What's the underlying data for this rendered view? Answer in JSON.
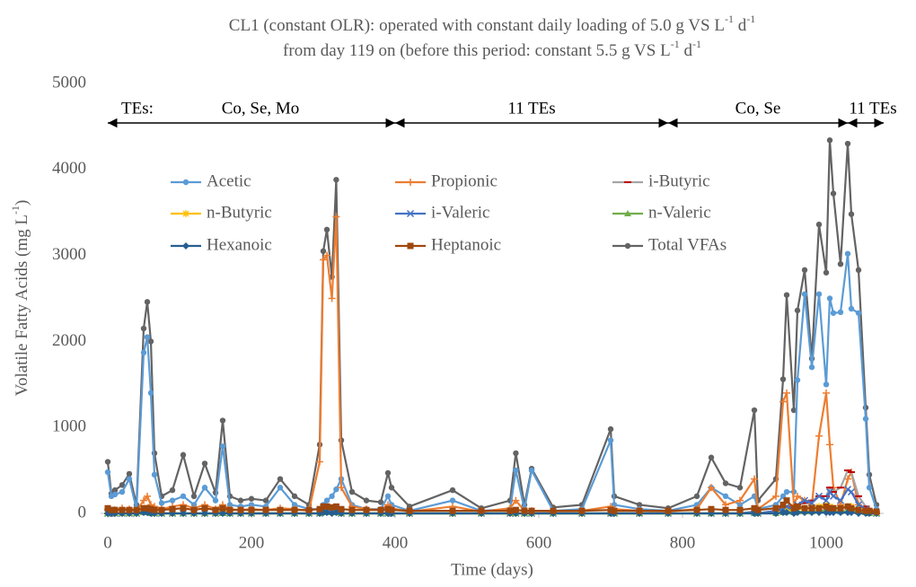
{
  "chart_data": {
    "type": "line",
    "title": [
      [
        "CL1 (constant OLR): operated with constant daily loading of 5.0 g VS L",
        "-1",
        " d",
        "-1"
      ],
      [
        "from day 119 on (before this period: constant 5.5 g VS L",
        "-1",
        " d",
        "-1"
      ]
    ],
    "x_label": "Time (days)",
    "y_label": [
      "Volatile Fatty Acids (mg L",
      "-1",
      ")"
    ],
    "xlim": [
      -10,
      1080
    ],
    "xticks": [
      0,
      200,
      400,
      600,
      800,
      1000
    ],
    "ylim": [
      0,
      5000
    ],
    "yticks": [
      0,
      1000,
      2000,
      3000,
      4000,
      5000
    ],
    "grid": false,
    "period_heading": "TEs:",
    "periods": [
      {
        "label": "Co, Se, Mo",
        "start": 0,
        "end": 400
      },
      {
        "label": "11 TEs",
        "start": 400,
        "end": 780
      },
      {
        "label": "Co, Se",
        "start": 780,
        "end": 1030
      },
      {
        "label": "11 TEs",
        "start": 1030,
        "end": 1080
      }
    ],
    "x": [
      0,
      5,
      10,
      20,
      30,
      40,
      50,
      55,
      60,
      65,
      75,
      90,
      105,
      120,
      135,
      150,
      160,
      170,
      185,
      200,
      220,
      240,
      260,
      280,
      295,
      300,
      305,
      312,
      318,
      325,
      340,
      360,
      380,
      390,
      395,
      420,
      480,
      520,
      560,
      568,
      580,
      590,
      620,
      660,
      700,
      705,
      740,
      780,
      820,
      840,
      860,
      880,
      900,
      905,
      930,
      940,
      945,
      955,
      960,
      970,
      980,
      990,
      1000,
      1005,
      1010,
      1020,
      1030,
      1035,
      1045,
      1055,
      1060,
      1070
    ],
    "series": [
      {
        "name": "Total VFAs",
        "color": "#636363",
        "marker": "circle",
        "values": [
          600,
          230,
          270,
          330,
          460,
          100,
          2150,
          2460,
          2000,
          700,
          200,
          270,
          680,
          200,
          580,
          240,
          1080,
          200,
          150,
          170,
          150,
          400,
          200,
          100,
          800,
          3050,
          3300,
          2750,
          3880,
          850,
          250,
          150,
          130,
          470,
          300,
          80,
          270,
          60,
          150,
          700,
          100,
          520,
          70,
          100,
          980,
          200,
          100,
          60,
          200,
          650,
          350,
          300,
          1200,
          150,
          400,
          1560,
          2540,
          1200,
          2360,
          2830,
          1800,
          3360,
          2800,
          4340,
          3720,
          2900,
          4300,
          3480,
          2830,
          1230,
          450,
          100
        ]
      },
      {
        "name": "Acetic",
        "color": "#5b9bd5",
        "marker": "circle",
        "values": [
          480,
          200,
          220,
          250,
          400,
          50,
          1870,
          2050,
          1400,
          450,
          120,
          150,
          200,
          100,
          300,
          150,
          780,
          100,
          80,
          100,
          80,
          300,
          100,
          50,
          50,
          100,
          150,
          200,
          280,
          400,
          100,
          50,
          50,
          200,
          100,
          30,
          150,
          30,
          50,
          500,
          50,
          500,
          30,
          50,
          850,
          100,
          50,
          30,
          100,
          300,
          200,
          100,
          200,
          50,
          100,
          200,
          250,
          250,
          1550,
          2550,
          1700,
          2550,
          1500,
          2500,
          2330,
          2340,
          3020,
          2380,
          2330,
          1100,
          300,
          50
        ]
      },
      {
        "name": "Propionic",
        "color": "#ed7d31",
        "marker": "plus",
        "values": [
          50,
          30,
          40,
          60,
          50,
          30,
          150,
          200,
          100,
          80,
          50,
          80,
          100,
          60,
          100,
          50,
          100,
          50,
          40,
          50,
          40,
          60,
          50,
          30,
          600,
          2950,
          3000,
          2500,
          3450,
          300,
          80,
          50,
          40,
          100,
          60,
          20,
          80,
          20,
          60,
          150,
          30,
          30,
          20,
          30,
          80,
          50,
          30,
          20,
          50,
          300,
          100,
          150,
          400,
          50,
          200,
          1300,
          1400,
          100,
          200,
          150,
          100,
          900,
          1400,
          800,
          300,
          100,
          400,
          480,
          100,
          50,
          50,
          20
        ]
      },
      {
        "name": "i-Butyric",
        "color": "#a5a5a5",
        "marker": "dash",
        "values": [
          0,
          0,
          0,
          0,
          0,
          0,
          20,
          20,
          10,
          0,
          0,
          0,
          0,
          0,
          0,
          0,
          20,
          0,
          0,
          0,
          0,
          0,
          0,
          0,
          0,
          30,
          30,
          20,
          30,
          0,
          0,
          0,
          0,
          0,
          0,
          0,
          0,
          0,
          0,
          0,
          0,
          0,
          0,
          0,
          0,
          0,
          0,
          0,
          0,
          0,
          0,
          0,
          20,
          0,
          30,
          60,
          80,
          60,
          100,
          120,
          150,
          200,
          200,
          300,
          250,
          300,
          500,
          480,
          200,
          80,
          30,
          0
        ]
      },
      {
        "name": "n-Butyric",
        "color": "#ffc000",
        "marker": "star",
        "values": [
          0,
          0,
          0,
          0,
          0,
          0,
          30,
          30,
          20,
          0,
          0,
          0,
          0,
          0,
          0,
          0,
          30,
          0,
          0,
          0,
          0,
          0,
          0,
          0,
          0,
          40,
          40,
          30,
          40,
          0,
          0,
          0,
          0,
          0,
          0,
          0,
          0,
          0,
          0,
          0,
          0,
          0,
          0,
          0,
          0,
          0,
          0,
          0,
          0,
          0,
          0,
          0,
          20,
          0,
          20,
          40,
          50,
          30,
          50,
          60,
          60,
          80,
          100,
          80,
          60,
          60,
          80,
          80,
          40,
          20,
          10,
          0
        ]
      },
      {
        "name": "i-Valeric",
        "color": "#4472c4",
        "marker": "x",
        "values": [
          0,
          0,
          0,
          0,
          0,
          0,
          20,
          20,
          10,
          0,
          0,
          0,
          0,
          0,
          0,
          0,
          10,
          0,
          0,
          0,
          0,
          0,
          0,
          0,
          0,
          20,
          20,
          20,
          20,
          0,
          0,
          0,
          0,
          0,
          0,
          0,
          0,
          0,
          0,
          0,
          0,
          0,
          0,
          0,
          0,
          0,
          0,
          0,
          0,
          0,
          0,
          0,
          20,
          0,
          30,
          50,
          80,
          50,
          100,
          150,
          120,
          200,
          150,
          250,
          200,
          150,
          280,
          250,
          100,
          50,
          20,
          0
        ]
      },
      {
        "name": "n-Valeric",
        "color": "#70ad47",
        "marker": "triangle",
        "values": [
          0,
          0,
          0,
          0,
          0,
          0,
          10,
          10,
          0,
          0,
          0,
          0,
          0,
          0,
          0,
          0,
          0,
          0,
          0,
          0,
          0,
          0,
          0,
          0,
          0,
          10,
          10,
          10,
          10,
          0,
          0,
          0,
          0,
          0,
          0,
          0,
          0,
          0,
          0,
          0,
          0,
          0,
          0,
          0,
          0,
          0,
          0,
          0,
          0,
          0,
          0,
          0,
          0,
          0,
          0,
          10,
          20,
          10,
          20,
          20,
          20,
          30,
          30,
          30,
          30,
          20,
          30,
          30,
          20,
          10,
          0,
          0
        ]
      },
      {
        "name": "Hexanoic",
        "color": "#255e91",
        "marker": "diamond",
        "values": [
          0,
          0,
          0,
          0,
          0,
          0,
          10,
          10,
          0,
          0,
          0,
          0,
          0,
          0,
          0,
          0,
          0,
          0,
          0,
          0,
          0,
          0,
          0,
          0,
          0,
          10,
          10,
          0,
          10,
          0,
          0,
          0,
          0,
          0,
          0,
          0,
          0,
          0,
          0,
          0,
          0,
          0,
          0,
          0,
          0,
          0,
          0,
          0,
          0,
          0,
          0,
          0,
          0,
          0,
          0,
          10,
          10,
          0,
          10,
          10,
          10,
          10,
          10,
          10,
          10,
          10,
          10,
          10,
          0,
          0,
          0,
          0
        ]
      },
      {
        "name": "Heptanoic",
        "color": "#9e480e",
        "marker": "square",
        "values": [
          60,
          40,
          40,
          40,
          40,
          40,
          60,
          60,
          50,
          40,
          40,
          50,
          60,
          40,
          60,
          40,
          60,
          40,
          40,
          40,
          40,
          40,
          40,
          40,
          50,
          80,
          80,
          70,
          80,
          50,
          40,
          40,
          40,
          50,
          40,
          30,
          30,
          30,
          30,
          40,
          30,
          30,
          30,
          30,
          40,
          30,
          30,
          30,
          40,
          50,
          40,
          40,
          60,
          40,
          60,
          100,
          150,
          60,
          80,
          60,
          60,
          60,
          80,
          60,
          60,
          60,
          80,
          60,
          40,
          30,
          30,
          20
        ]
      }
    ],
    "legend_order": [
      1,
      2,
      3,
      4,
      5,
      6,
      7,
      8,
      0
    ]
  }
}
